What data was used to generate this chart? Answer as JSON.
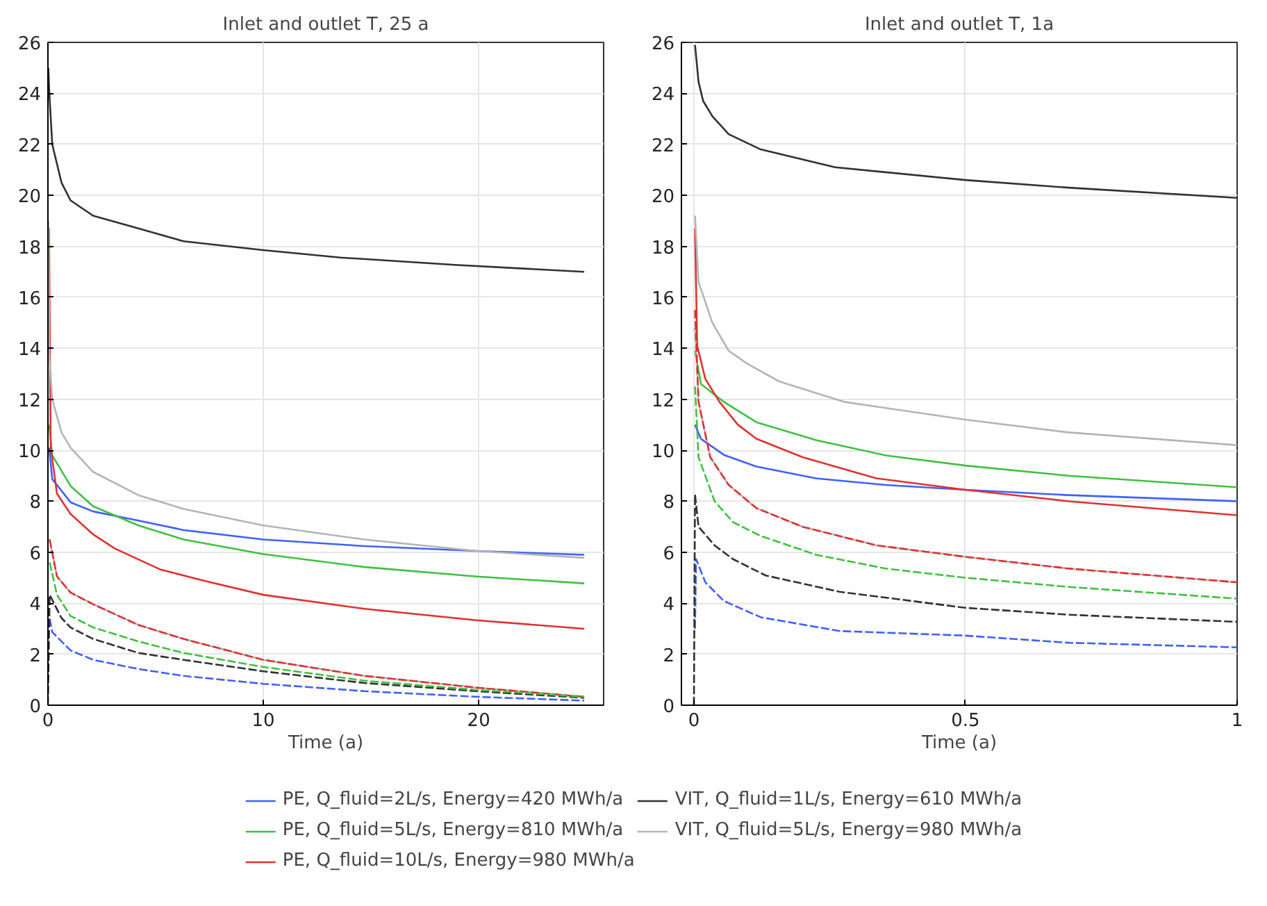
{
  "chart_data": [
    {
      "type": "line",
      "title": "Inlet and outlet T, 25 a",
      "xlabel": "Time (a)",
      "xlim": [
        0,
        25.8
      ],
      "ylim": [
        0,
        26
      ],
      "xticks": [
        0,
        10,
        20
      ],
      "yticks": [
        0,
        2,
        4,
        6,
        8,
        10,
        12,
        14,
        16,
        18,
        20,
        22,
        24,
        26
      ],
      "grid": true,
      "legend": "bottom",
      "series": [
        {
          "name": "PE, Q_fluid=2L/s, Energy=420 MWh/a",
          "color": "#3f5fff",
          "line_style": "solid",
          "x": [
            0.06,
            0.2,
            1.05,
            2.1,
            4.2,
            6.3,
            10,
            14.7,
            19.9,
            24.9
          ],
          "values": [
            10.1,
            8.87,
            7.96,
            7.6,
            7.24,
            6.87,
            6.5,
            6.24,
            6.05,
            5.9
          ]
        },
        {
          "name": "PE, Q_fluid=5L/s, Energy=810 MWh/a",
          "color": "#3fc03f",
          "line_style": "solid",
          "x": [
            0.06,
            0.2,
            1.05,
            2.1,
            4.2,
            6.3,
            10,
            14.7,
            19.9,
            24.9
          ],
          "values": [
            11,
            9.8,
            8.6,
            7.8,
            7.05,
            6.5,
            5.93,
            5.42,
            5.05,
            4.78
          ]
        },
        {
          "name": "PE, Q_fluid=10L/s, Energy=980 MWh/a",
          "color": "#e03030",
          "line_style": "solid",
          "x": [
            0.05,
            0.13,
            0.42,
            1.05,
            2.1,
            3.1,
            5.2,
            7.3,
            10,
            14.7,
            19.9,
            24.9
          ],
          "values": [
            18.7,
            10.1,
            8.3,
            7.5,
            6.7,
            6.15,
            5.33,
            4.87,
            4.33,
            3.78,
            3.33,
            3.0
          ]
        },
        {
          "name": "VIT, Q_fluid=1L/s, Energy=610 MWh/a",
          "color": "#303030",
          "line_style": "solid",
          "x": [
            0.02,
            0.06,
            0.2,
            0.63,
            1.05,
            2.1,
            4.2,
            6.3,
            8.4,
            10,
            13.6,
            18.9,
            24.9
          ],
          "values": [
            25,
            24.1,
            22.0,
            20.5,
            19.8,
            19.2,
            18.7,
            18.2,
            18.0,
            17.85,
            17.56,
            17.27,
            17.0
          ]
        },
        {
          "name": "VIT, Q_fluid=5L/s, Energy=980 MWh/a",
          "color": "#b4b4b4",
          "line_style": "solid",
          "x": [
            0.02,
            0.06,
            0.2,
            0.63,
            1.05,
            2.1,
            4.2,
            6.3,
            10,
            14.7,
            19.9,
            24.9
          ],
          "values": [
            19,
            13.8,
            12.0,
            10.7,
            10.1,
            9.15,
            8.24,
            7.7,
            7.05,
            6.5,
            6.05,
            5.78
          ]
        },
        {
          "color": "#3f5fff",
          "line_style": "dashed",
          "x": [
            0.08,
            0.2,
            1.05,
            2.1,
            4.2,
            6.3,
            10,
            14.7,
            19.9,
            24.9
          ],
          "values": [
            3.4,
            2.87,
            2.15,
            1.78,
            1.42,
            1.15,
            0.84,
            0.55,
            0.33,
            0.18
          ]
        },
        {
          "color": "#b4b4b4",
          "line_style": "dashed",
          "x": [
            0.08,
            0.42,
            1.05,
            2.1,
            4.2,
            6.3,
            10,
            14.7,
            19.9,
            24.9
          ],
          "values": [
            6.5,
            5.05,
            4.42,
            3.96,
            3.15,
            2.6,
            1.78,
            1.15,
            0.69,
            0.33
          ]
        },
        {
          "color": "#e03030",
          "line_style": "dashed",
          "x": [
            0.08,
            0.42,
            1.05,
            2.1,
            4.2,
            6.3,
            10,
            14.7,
            19.9,
            24.9
          ],
          "values": [
            6.5,
            5.05,
            4.42,
            3.96,
            3.15,
            2.6,
            1.78,
            1.15,
            0.69,
            0.33
          ]
        },
        {
          "color": "#303030",
          "line_style": "dashed",
          "x": [
            0,
            0.08,
            0.63,
            1.05,
            2.1,
            4.2,
            6.3,
            10,
            14.7,
            19.9,
            24.9
          ],
          "values": [
            0,
            4.33,
            3.42,
            3.05,
            2.6,
            2.05,
            1.78,
            1.33,
            0.87,
            0.55,
            0.29
          ]
        },
        {
          "color": "#3fc03f",
          "line_style": "dashed",
          "x": [
            0.08,
            0.42,
            1.05,
            2.1,
            4.2,
            6.3,
            10,
            14.7,
            19.9,
            24.9
          ],
          "values": [
            5.6,
            4.33,
            3.5,
            3.05,
            2.5,
            2.05,
            1.5,
            0.96,
            0.6,
            0.33
          ]
        }
      ]
    },
    {
      "type": "line",
      "title": "Inlet and outlet T, 1a",
      "xlabel": "Time (a)",
      "xlim": [
        -0.023,
        1.0
      ],
      "ylim": [
        0,
        26
      ],
      "xticks": [
        0,
        0.5,
        1
      ],
      "yticks": [
        0,
        2,
        4,
        6,
        8,
        10,
        12,
        14,
        16,
        18,
        20,
        22,
        24,
        26
      ],
      "grid": true,
      "series": [
        {
          "color": "#3f5fff",
          "line_style": "solid",
          "x": [
            0.002,
            0.013,
            0.055,
            0.115,
            0.225,
            0.353,
            0.5,
            0.69,
            1.0
          ],
          "values": [
            11.0,
            10.45,
            9.82,
            9.36,
            8.9,
            8.64,
            8.45,
            8.24,
            8.0
          ]
        },
        {
          "color": "#3fc03f",
          "line_style": "solid",
          "x": [
            0.002,
            0.013,
            0.055,
            0.115,
            0.225,
            0.353,
            0.5,
            0.69,
            1.0
          ],
          "values": [
            13.9,
            12.6,
            11.9,
            11.1,
            10.4,
            9.8,
            9.4,
            9.0,
            8.55
          ]
        },
        {
          "color": "#e03030",
          "line_style": "solid",
          "x": [
            0.002,
            0.006,
            0.021,
            0.047,
            0.081,
            0.115,
            0.2,
            0.336,
            0.5,
            0.69,
            1.0
          ],
          "values": [
            18.7,
            14.1,
            12.8,
            11.9,
            11.0,
            10.45,
            9.73,
            8.9,
            8.45,
            8.0,
            7.45
          ]
        },
        {
          "color": "#303030",
          "line_style": "solid",
          "x": [
            0.002,
            0.0085,
            0.017,
            0.034,
            0.064,
            0.123,
            0.26,
            0.5,
            0.69,
            1.0
          ],
          "values": [
            25.9,
            24.45,
            23.7,
            23.1,
            22.4,
            21.8,
            21.1,
            20.6,
            20.3,
            19.9
          ]
        },
        {
          "color": "#b4b4b4",
          "line_style": "solid",
          "x": [
            0.002,
            0.0085,
            0.034,
            0.064,
            0.098,
            0.157,
            0.276,
            0.5,
            0.69,
            1.0
          ],
          "values": [
            19.2,
            16.6,
            15.0,
            13.9,
            13.4,
            12.7,
            11.9,
            11.2,
            10.7,
            10.2
          ]
        },
        {
          "color": "#3f5fff",
          "line_style": "dashed",
          "x": [
            0.002,
            0.004,
            0.021,
            0.055,
            0.123,
            0.268,
            0.5,
            0.69,
            1.0
          ],
          "values": [
            3.0,
            5.73,
            4.82,
            4.09,
            3.45,
            2.91,
            2.73,
            2.45,
            2.27
          ]
        },
        {
          "color": "#3fc03f",
          "line_style": "dashed",
          "x": [
            0.002,
            0.0085,
            0.038,
            0.072,
            0.123,
            0.225,
            0.353,
            0.5,
            0.69,
            1.0
          ],
          "values": [
            12.5,
            9.73,
            8.0,
            7.18,
            6.64,
            5.9,
            5.36,
            5.0,
            4.64,
            4.18
          ]
        },
        {
          "color": "#b4b4b4",
          "line_style": "dashed",
          "x": [
            0.002,
            0.0085,
            0.03,
            0.064,
            0.115,
            0.2,
            0.336,
            0.5,
            0.69,
            1.0
          ],
          "values": [
            14.8,
            11.9,
            9.73,
            8.64,
            7.73,
            7.0,
            6.27,
            5.82,
            5.36,
            4.82
          ]
        },
        {
          "color": "#e03030",
          "line_style": "dashed",
          "x": [
            0.002,
            0.0085,
            0.03,
            0.064,
            0.115,
            0.2,
            0.336,
            0.5,
            0.69,
            1.0
          ],
          "values": [
            15.5,
            11.9,
            9.73,
            8.64,
            7.73,
            7.0,
            6.27,
            5.82,
            5.36,
            4.82
          ]
        },
        {
          "color": "#303030",
          "line_style": "dashed",
          "x": [
            0,
            0.002,
            0.0085,
            0.038,
            0.072,
            0.132,
            0.268,
            0.5,
            0.69,
            1.0
          ],
          "values": [
            0,
            8.27,
            7.0,
            6.27,
            5.73,
            5.09,
            4.45,
            3.82,
            3.55,
            3.27
          ]
        }
      ]
    }
  ]
}
